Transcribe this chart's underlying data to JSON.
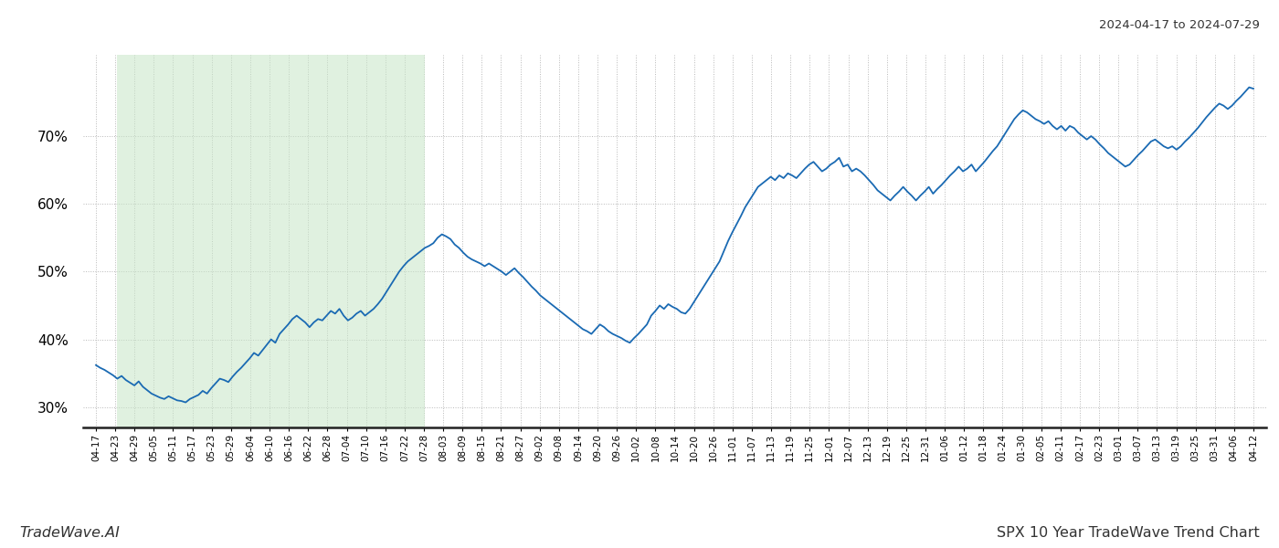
{
  "title_top_right": "2024-04-17 to 2024-07-29",
  "title_bottom_right": "SPX 10 Year TradeWave Trend Chart",
  "title_bottom_left": "TradeWave.AI",
  "line_color": "#1a6ab3",
  "line_width": 1.3,
  "shade_color": "#c8e6c8",
  "shade_alpha": 0.55,
  "background_color": "#ffffff",
  "grid_color": "#b8b8b8",
  "ylim": [
    27,
    82
  ],
  "yticks": [
    30,
    40,
    50,
    60,
    70
  ],
  "x_labels": [
    "04-17",
    "04-23",
    "04-29",
    "05-05",
    "05-11",
    "05-17",
    "05-23",
    "05-29",
    "06-04",
    "06-10",
    "06-16",
    "06-22",
    "06-28",
    "07-04",
    "07-10",
    "07-16",
    "07-22",
    "07-28",
    "08-03",
    "08-09",
    "08-15",
    "08-21",
    "08-27",
    "09-02",
    "09-08",
    "09-14",
    "09-20",
    "09-26",
    "10-02",
    "10-08",
    "10-14",
    "10-20",
    "10-26",
    "11-01",
    "11-07",
    "11-13",
    "11-19",
    "11-25",
    "12-01",
    "12-07",
    "12-13",
    "12-19",
    "12-25",
    "12-31",
    "01-06",
    "01-12",
    "01-18",
    "01-24",
    "01-30",
    "02-05",
    "02-11",
    "02-17",
    "02-23",
    "03-01",
    "03-07",
    "03-13",
    "03-19",
    "03-25",
    "03-31",
    "04-06",
    "04-12"
  ],
  "y_values": [
    36.2,
    35.8,
    35.5,
    35.1,
    34.7,
    34.2,
    34.6,
    34.0,
    33.6,
    33.2,
    33.8,
    33.0,
    32.5,
    32.0,
    31.7,
    31.4,
    31.2,
    31.6,
    31.3,
    31.0,
    30.9,
    30.7,
    31.2,
    31.5,
    31.8,
    32.4,
    32.0,
    32.8,
    33.5,
    34.2,
    34.0,
    33.7,
    34.5,
    35.2,
    35.8,
    36.5,
    37.2,
    38.0,
    37.6,
    38.4,
    39.2,
    40.0,
    39.5,
    40.8,
    41.5,
    42.2,
    43.0,
    43.5,
    43.0,
    42.5,
    41.8,
    42.5,
    43.0,
    42.8,
    43.5,
    44.2,
    43.8,
    44.5,
    43.5,
    42.8,
    43.2,
    43.8,
    44.2,
    43.5,
    44.0,
    44.5,
    45.2,
    46.0,
    47.0,
    48.0,
    49.0,
    50.0,
    50.8,
    51.5,
    52.0,
    52.5,
    53.0,
    53.5,
    53.8,
    54.2,
    55.0,
    55.5,
    55.2,
    54.8,
    54.0,
    53.5,
    52.8,
    52.2,
    51.8,
    51.5,
    51.2,
    50.8,
    51.2,
    50.8,
    50.4,
    50.0,
    49.5,
    50.0,
    50.5,
    49.8,
    49.2,
    48.5,
    47.8,
    47.2,
    46.5,
    46.0,
    45.5,
    45.0,
    44.5,
    44.0,
    43.5,
    43.0,
    42.5,
    42.0,
    41.5,
    41.2,
    40.8,
    41.5,
    42.2,
    41.8,
    41.2,
    40.8,
    40.5,
    40.2,
    39.8,
    39.5,
    40.2,
    40.8,
    41.5,
    42.2,
    43.5,
    44.2,
    45.0,
    44.5,
    45.2,
    44.8,
    44.5,
    44.0,
    43.8,
    44.5,
    45.5,
    46.5,
    47.5,
    48.5,
    49.5,
    50.5,
    51.5,
    53.0,
    54.5,
    55.8,
    57.0,
    58.2,
    59.5,
    60.5,
    61.5,
    62.5,
    63.0,
    63.5,
    64.0,
    63.5,
    64.2,
    63.8,
    64.5,
    64.2,
    63.8,
    64.5,
    65.2,
    65.8,
    66.2,
    65.5,
    64.8,
    65.2,
    65.8,
    66.2,
    66.8,
    65.5,
    65.8,
    64.8,
    65.2,
    64.8,
    64.2,
    63.5,
    62.8,
    62.0,
    61.5,
    61.0,
    60.5,
    61.2,
    61.8,
    62.5,
    61.8,
    61.2,
    60.5,
    61.2,
    61.8,
    62.5,
    61.5,
    62.2,
    62.8,
    63.5,
    64.2,
    64.8,
    65.5,
    64.8,
    65.2,
    65.8,
    64.8,
    65.5,
    66.2,
    67.0,
    67.8,
    68.5,
    69.5,
    70.5,
    71.5,
    72.5,
    73.2,
    73.8,
    73.5,
    73.0,
    72.5,
    72.2,
    71.8,
    72.2,
    71.5,
    71.0,
    71.5,
    70.8,
    71.5,
    71.2,
    70.5,
    70.0,
    69.5,
    70.0,
    69.5,
    68.8,
    68.2,
    67.5,
    67.0,
    66.5,
    66.0,
    65.5,
    65.8,
    66.5,
    67.2,
    67.8,
    68.5,
    69.2,
    69.5,
    69.0,
    68.5,
    68.2,
    68.5,
    68.0,
    68.5,
    69.2,
    69.8,
    70.5,
    71.2,
    72.0,
    72.8,
    73.5,
    74.2,
    74.8,
    74.5,
    74.0,
    74.5,
    75.2,
    75.8,
    76.5,
    77.2,
    77.0
  ],
  "shade_start_label": "04-23",
  "shade_end_label": "07-28"
}
